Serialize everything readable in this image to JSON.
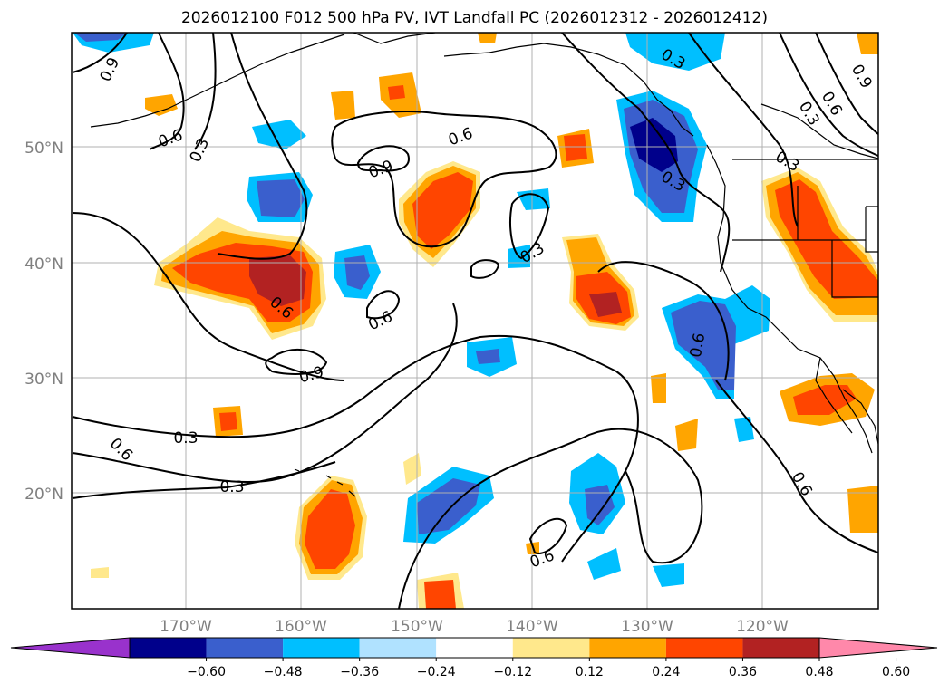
{
  "title": "2026012100 F012 500 hPa PV, IVT Landfall PC (2026012312 - 2026012412)",
  "lat_labels": [
    "50°N",
    "40°N",
    "30°N",
    "20°N"
  ],
  "lon_labels": [
    "170°W",
    "160°W",
    "150°W",
    "140°W",
    "130°W",
    "120°W"
  ],
  "contour_labels": [
    "0.9",
    "0.6",
    "0.3",
    "0.6",
    "0.9",
    "0.6",
    "0.3",
    "0.6",
    "0.9",
    "0.3",
    "0.6",
    "0.3",
    "0.6",
    "0.3",
    "0.3",
    "0.6",
    "0.3",
    "0.6",
    "0.9",
    "0.3",
    "0.6"
  ],
  "colorbar": {
    "ticks": [
      "−0.60",
      "−0.48",
      "−0.36",
      "−0.24",
      "−0.12",
      "0.12",
      "0.24",
      "0.36",
      "0.48",
      "0.60"
    ],
    "colors": [
      "#9932cc",
      "#00008b",
      "#3a5fcd",
      "#00bfff",
      "#b0e2ff",
      "#ffffff",
      "#ffe88c",
      "#ffa500",
      "#ff4500",
      "#b22222",
      "#ff88aa"
    ]
  }
}
